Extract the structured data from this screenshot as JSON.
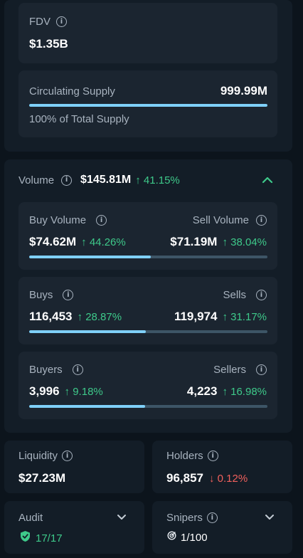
{
  "fdv": {
    "label": "FDV",
    "value": "$1.35B"
  },
  "supply": {
    "label": "Circulating Supply",
    "value": "999.99M",
    "sub": "100% of Total Supply",
    "fill": 1.0
  },
  "volume": {
    "label": "Volume",
    "value": "$145.81M",
    "change": "41.15%",
    "buy_label": "Buy Volume",
    "buy_value": "$74.62M",
    "buy_change": "44.26%",
    "sell_label": "Sell Volume",
    "sell_value": "$71.19M",
    "sell_change": "38.04%",
    "buy_ratio": 0.51
  },
  "txns": {
    "buys_label": "Buys",
    "buys_value": "116,453",
    "buys_change": "28.87%",
    "sells_label": "Sells",
    "sells_value": "119,974",
    "sells_change": "31.17%",
    "buy_ratio": 0.49
  },
  "traders": {
    "buyers_label": "Buyers",
    "buyers_value": "3,996",
    "buyers_change": "9.18%",
    "sellers_label": "Sellers",
    "sellers_value": "4,223",
    "sellers_change": "16.98%",
    "buy_ratio": 0.486
  },
  "liquidity": {
    "label": "Liquidity",
    "value": "$27.23M"
  },
  "holders": {
    "label": "Holders",
    "value": "96,857",
    "change": "0.12%"
  },
  "audit": {
    "label": "Audit",
    "value": "17/17"
  },
  "snipers": {
    "label": "Snipers",
    "value": "1/100"
  },
  "colors": {
    "up": "#3ec98a",
    "down": "#f0605c",
    "bar": "#7fd0f8",
    "track": "#3d5566"
  }
}
